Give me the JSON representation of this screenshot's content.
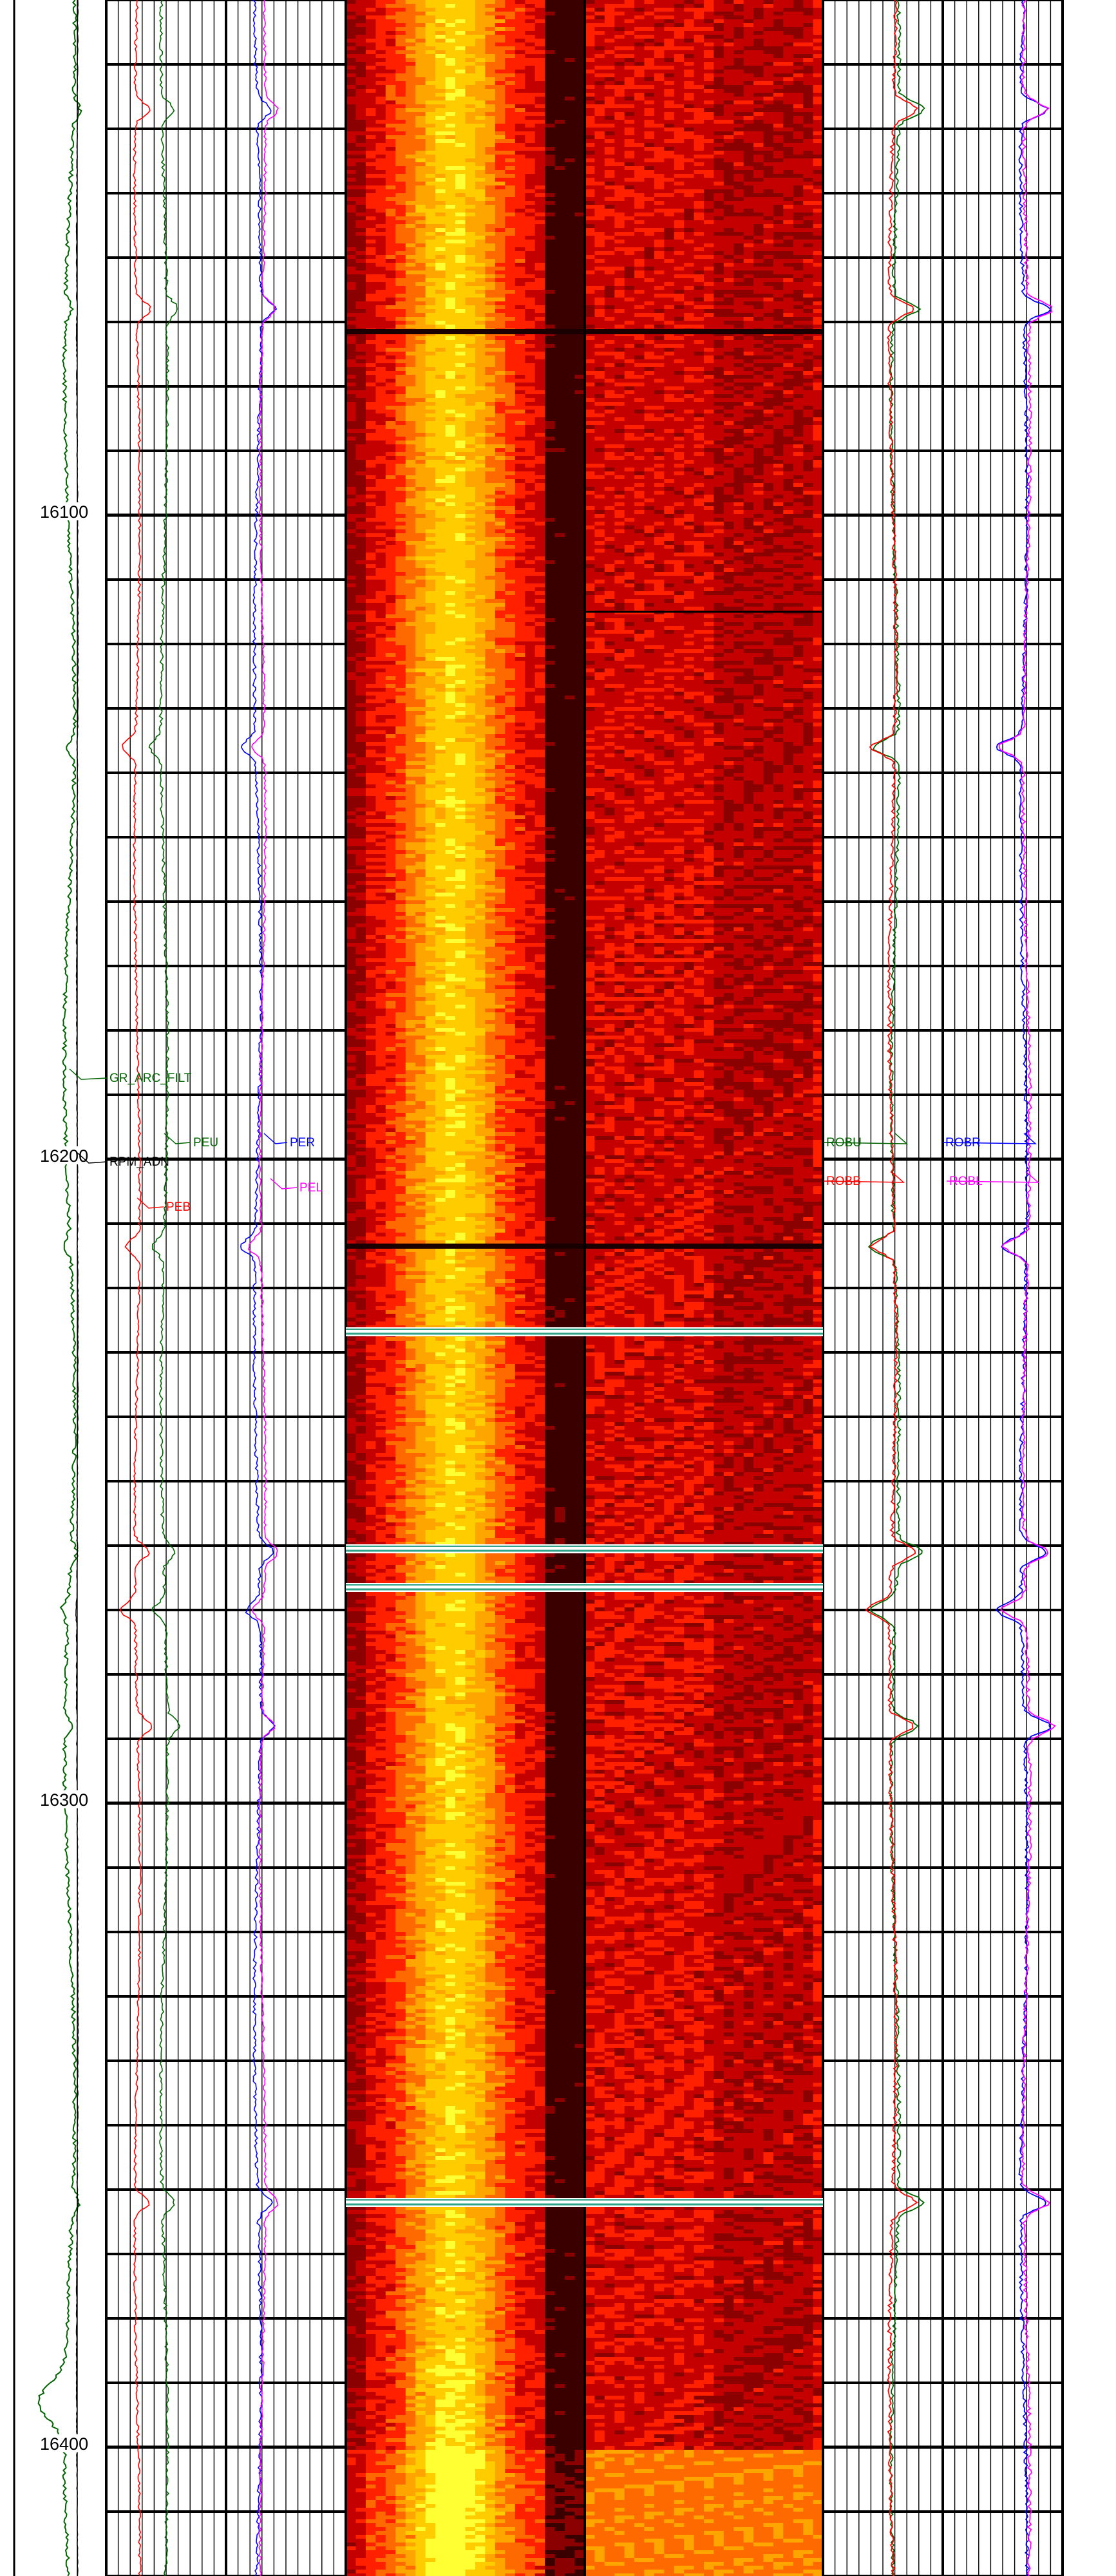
{
  "chart_data": {
    "type": "well-log",
    "depth_axis": {
      "range": [
        16020,
        16420
      ],
      "major_step": 10,
      "labels": [
        "16100",
        "16200",
        "16300",
        "16400"
      ],
      "label_values": [
        16100,
        16200,
        16300,
        16400
      ]
    },
    "track1": {
      "curves": [
        {
          "name": "GR_ARC_FILT",
          "color": "#006400"
        },
        {
          "name": "RPM_ADN",
          "color": "#000000"
        }
      ]
    },
    "track2": {
      "curves": [
        {
          "name": "PEU",
          "color": "#006400"
        },
        {
          "name": "PEB",
          "color": "#ff0000"
        },
        {
          "name": "PER",
          "color": "#0000ff"
        },
        {
          "name": "PEL",
          "color": "#ff00ff"
        }
      ]
    },
    "track5": {
      "curves": [
        {
          "name": "ROBU",
          "color": "#006400"
        },
        {
          "name": "ROBB",
          "color": "#ff0000"
        },
        {
          "name": "ROBR",
          "color": "#0000ff"
        },
        {
          "name": "ROBL",
          "color": "#ff00ff"
        }
      ]
    },
    "image_palette": [
      "#3a0000",
      "#8b0000",
      "#c40000",
      "#ff2000",
      "#ff6a00",
      "#ffa500",
      "#ffcc00",
      "#ffff33"
    ],
    "bed_boundaries": [
      16213.5,
      16226.8,
      16260.5,
      16266.5,
      16362.0
    ],
    "spikes": [
      16037,
      16068,
      16136,
      16213.5,
      16261,
      16270,
      16288,
      16362
    ]
  }
}
